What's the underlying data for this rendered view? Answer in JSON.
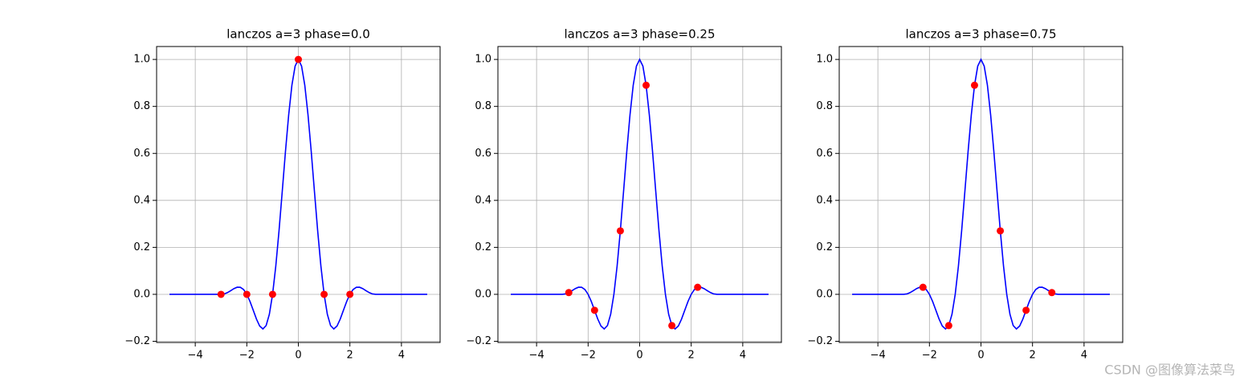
{
  "chart_data": [
    {
      "type": "line",
      "title": "lanczos a=3 phase=0.0",
      "color": "blue",
      "grid": true,
      "xlim": [
        -5.5,
        5.5
      ],
      "ylim": [
        -0.205,
        1.055
      ],
      "xticks": [
        {
          "value": -4,
          "label": "−4"
        },
        {
          "value": -2,
          "label": "−2"
        },
        0,
        2,
        4
      ],
      "yticks": [
        {
          "value": -0.2,
          "label": "−0.2"
        },
        {
          "value": 0,
          "label": "0.0"
        },
        0.2,
        0.4,
        0.6,
        0.8,
        {
          "value": 1,
          "label": "1.0"
        }
      ],
      "x": [
        -5,
        -4,
        -3,
        -2.875,
        -2.75,
        -2.625,
        -2.5,
        -2.375,
        -2.25,
        -2.125,
        -2,
        -1.875,
        -1.75,
        -1.625,
        -1.5,
        -1.375,
        -1.25,
        -1.125,
        -1,
        -0.875,
        -0.75,
        -0.625,
        -0.5,
        -0.375,
        -0.25,
        -0.125,
        0,
        0.125,
        0.25,
        0.375,
        0.5,
        0.625,
        0.75,
        0.875,
        1,
        1.125,
        1.25,
        1.375,
        1.5,
        1.625,
        1.75,
        1.875,
        2,
        2.125,
        2.25,
        2.375,
        2.5,
        2.625,
        2.75,
        2.875,
        3,
        4,
        5
      ],
      "values": [
        0,
        0,
        0,
        0.0018,
        0.0074,
        0.0156,
        0.0243,
        0.0303,
        0.03,
        0.0204,
        0,
        -0.0306,
        -0.0678,
        -0.1054,
        -0.1351,
        -0.1473,
        -0.1329,
        -0.0849,
        0,
        0.1205,
        0.2702,
        0.4377,
        0.6079,
        0.7642,
        0.8901,
        0.9717,
        1,
        0.9717,
        0.8901,
        0.7642,
        0.6079,
        0.4377,
        0.2702,
        0.1205,
        0,
        -0.0849,
        -0.1329,
        -0.1473,
        -0.1351,
        -0.1054,
        -0.0678,
        -0.0306,
        0,
        0.0204,
        0.03,
        0.0303,
        0.0243,
        0.0156,
        0.0074,
        0.0018,
        0,
        0,
        0
      ],
      "scatter": {
        "color": "red",
        "x": [
          -3,
          -2,
          -1,
          0,
          1,
          2
        ],
        "values": [
          0,
          0,
          0,
          1,
          0,
          0
        ]
      }
    },
    {
      "type": "line",
      "title": "lanczos a=3 phase=0.25",
      "color": "blue",
      "grid": true,
      "xlim": [
        -5.5,
        5.5
      ],
      "ylim": [
        -0.205,
        1.055
      ],
      "xticks": [
        {
          "value": -4,
          "label": "−4"
        },
        {
          "value": -2,
          "label": "−2"
        },
        0,
        2,
        4
      ],
      "yticks": [
        {
          "value": -0.2,
          "label": "−0.2"
        },
        {
          "value": 0,
          "label": "0.0"
        },
        0.2,
        0.4,
        0.6,
        0.8,
        {
          "value": 1,
          "label": "1.0"
        }
      ],
      "x": [
        -5,
        -4,
        -3,
        -2.875,
        -2.75,
        -2.625,
        -2.5,
        -2.375,
        -2.25,
        -2.125,
        -2,
        -1.875,
        -1.75,
        -1.625,
        -1.5,
        -1.375,
        -1.25,
        -1.125,
        -1,
        -0.875,
        -0.75,
        -0.625,
        -0.5,
        -0.375,
        -0.25,
        -0.125,
        0,
        0.125,
        0.25,
        0.375,
        0.5,
        0.625,
        0.75,
        0.875,
        1,
        1.125,
        1.25,
        1.375,
        1.5,
        1.625,
        1.75,
        1.875,
        2,
        2.125,
        2.25,
        2.375,
        2.5,
        2.625,
        2.75,
        2.875,
        3,
        4,
        5
      ],
      "values": [
        0,
        0,
        0,
        0.0018,
        0.0074,
        0.0156,
        0.0243,
        0.0303,
        0.03,
        0.0204,
        0,
        -0.0306,
        -0.0678,
        -0.1054,
        -0.1351,
        -0.1473,
        -0.1329,
        -0.0849,
        0,
        0.1205,
        0.2702,
        0.4377,
        0.6079,
        0.7642,
        0.8901,
        0.9717,
        1,
        0.9717,
        0.8901,
        0.7642,
        0.6079,
        0.4377,
        0.2702,
        0.1205,
        0,
        -0.0849,
        -0.1329,
        -0.1473,
        -0.1351,
        -0.1054,
        -0.0678,
        -0.0306,
        0,
        0.0204,
        0.03,
        0.0303,
        0.0243,
        0.0156,
        0.0074,
        0.0018,
        0,
        0,
        0
      ],
      "scatter": {
        "color": "red",
        "x": [
          -2.75,
          -1.75,
          -0.75,
          0.25,
          1.25,
          2.25
        ],
        "values": [
          0.0074,
          -0.0678,
          0.2702,
          0.8901,
          -0.1329,
          0.03
        ]
      }
    },
    {
      "type": "line",
      "title": "lanczos a=3 phase=0.75",
      "color": "blue",
      "grid": true,
      "xlim": [
        -5.5,
        5.5
      ],
      "ylim": [
        -0.205,
        1.055
      ],
      "xticks": [
        {
          "value": -4,
          "label": "−4"
        },
        {
          "value": -2,
          "label": "−2"
        },
        0,
        2,
        4
      ],
      "yticks": [
        {
          "value": -0.2,
          "label": "−0.2"
        },
        {
          "value": 0,
          "label": "0.0"
        },
        0.2,
        0.4,
        0.6,
        0.8,
        {
          "value": 1,
          "label": "1.0"
        }
      ],
      "x": [
        -5,
        -4,
        -3,
        -2.875,
        -2.75,
        -2.625,
        -2.5,
        -2.375,
        -2.25,
        -2.125,
        -2,
        -1.875,
        -1.75,
        -1.625,
        -1.5,
        -1.375,
        -1.25,
        -1.125,
        -1,
        -0.875,
        -0.75,
        -0.625,
        -0.5,
        -0.375,
        -0.25,
        -0.125,
        0,
        0.125,
        0.25,
        0.375,
        0.5,
        0.625,
        0.75,
        0.875,
        1,
        1.125,
        1.25,
        1.375,
        1.5,
        1.625,
        1.75,
        1.875,
        2,
        2.125,
        2.25,
        2.375,
        2.5,
        2.625,
        2.75,
        2.875,
        3,
        4,
        5
      ],
      "values": [
        0,
        0,
        0,
        0.0018,
        0.0074,
        0.0156,
        0.0243,
        0.0303,
        0.03,
        0.0204,
        0,
        -0.0306,
        -0.0678,
        -0.1054,
        -0.1351,
        -0.1473,
        -0.1329,
        -0.0849,
        0,
        0.1205,
        0.2702,
        0.4377,
        0.6079,
        0.7642,
        0.8901,
        0.9717,
        1,
        0.9717,
        0.8901,
        0.7642,
        0.6079,
        0.4377,
        0.2702,
        0.1205,
        0,
        -0.0849,
        -0.1329,
        -0.1473,
        -0.1351,
        -0.1054,
        -0.0678,
        -0.0306,
        0,
        0.0204,
        0.03,
        0.0303,
        0.0243,
        0.0156,
        0.0074,
        0.0018,
        0,
        0,
        0
      ],
      "scatter": {
        "color": "red",
        "x": [
          -2.25,
          -1.25,
          -0.25,
          0.75,
          1.75,
          2.75
        ],
        "values": [
          0.03,
          -0.1329,
          0.8901,
          0.2702,
          -0.0678,
          0.0074
        ]
      }
    }
  ],
  "watermark": "CSDN @图像算法菜鸟"
}
